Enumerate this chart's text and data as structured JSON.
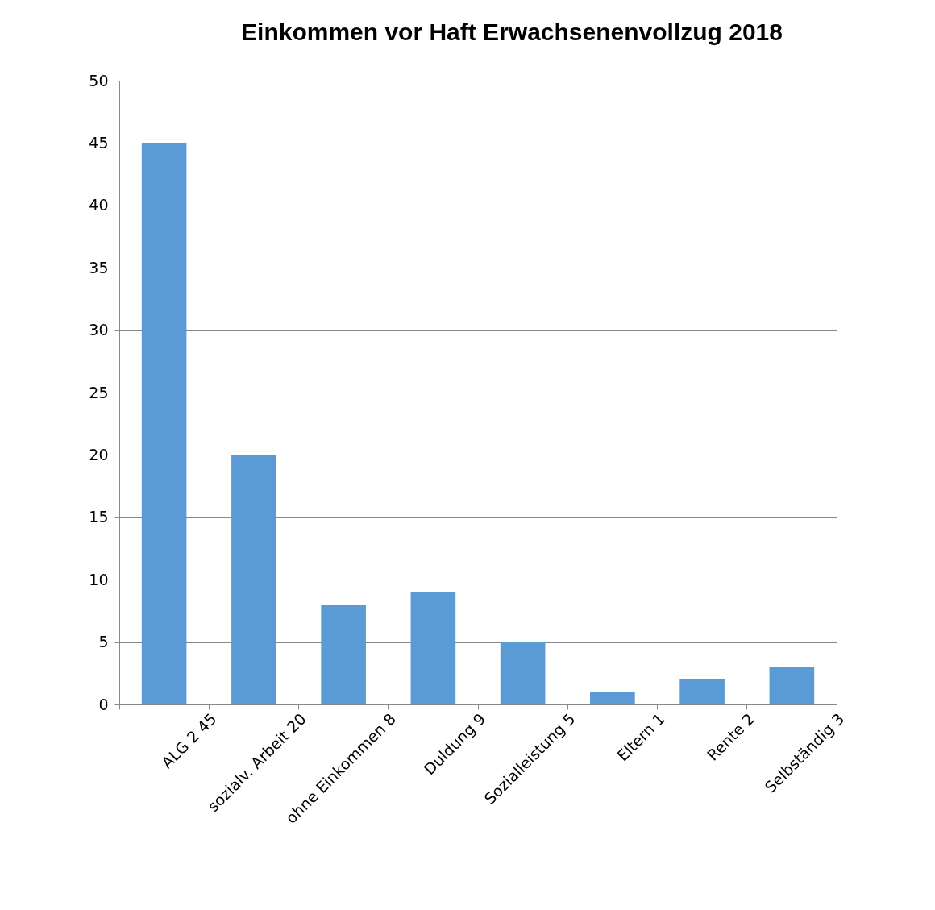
{
  "chart_data": {
    "type": "bar",
    "title": "Einkommen vor Haft Erwachsenenvollzug 2018",
    "categories": [
      "ALG 2  45",
      "sozialv. Arbeit 20",
      "ohne Einkommen 8",
      "Duldung 9",
      "Sozialleistung 5",
      "Eltern  1",
      "Rente 2",
      "Selbständig 3"
    ],
    "values": [
      45,
      20,
      8,
      9,
      5,
      1,
      2,
      3
    ],
    "color": "#5b9bd5",
    "ylim": [
      0,
      50
    ],
    "yticks": [
      0,
      5,
      10,
      15,
      20,
      25,
      30,
      35,
      40,
      45,
      50
    ],
    "grid": "y"
  }
}
